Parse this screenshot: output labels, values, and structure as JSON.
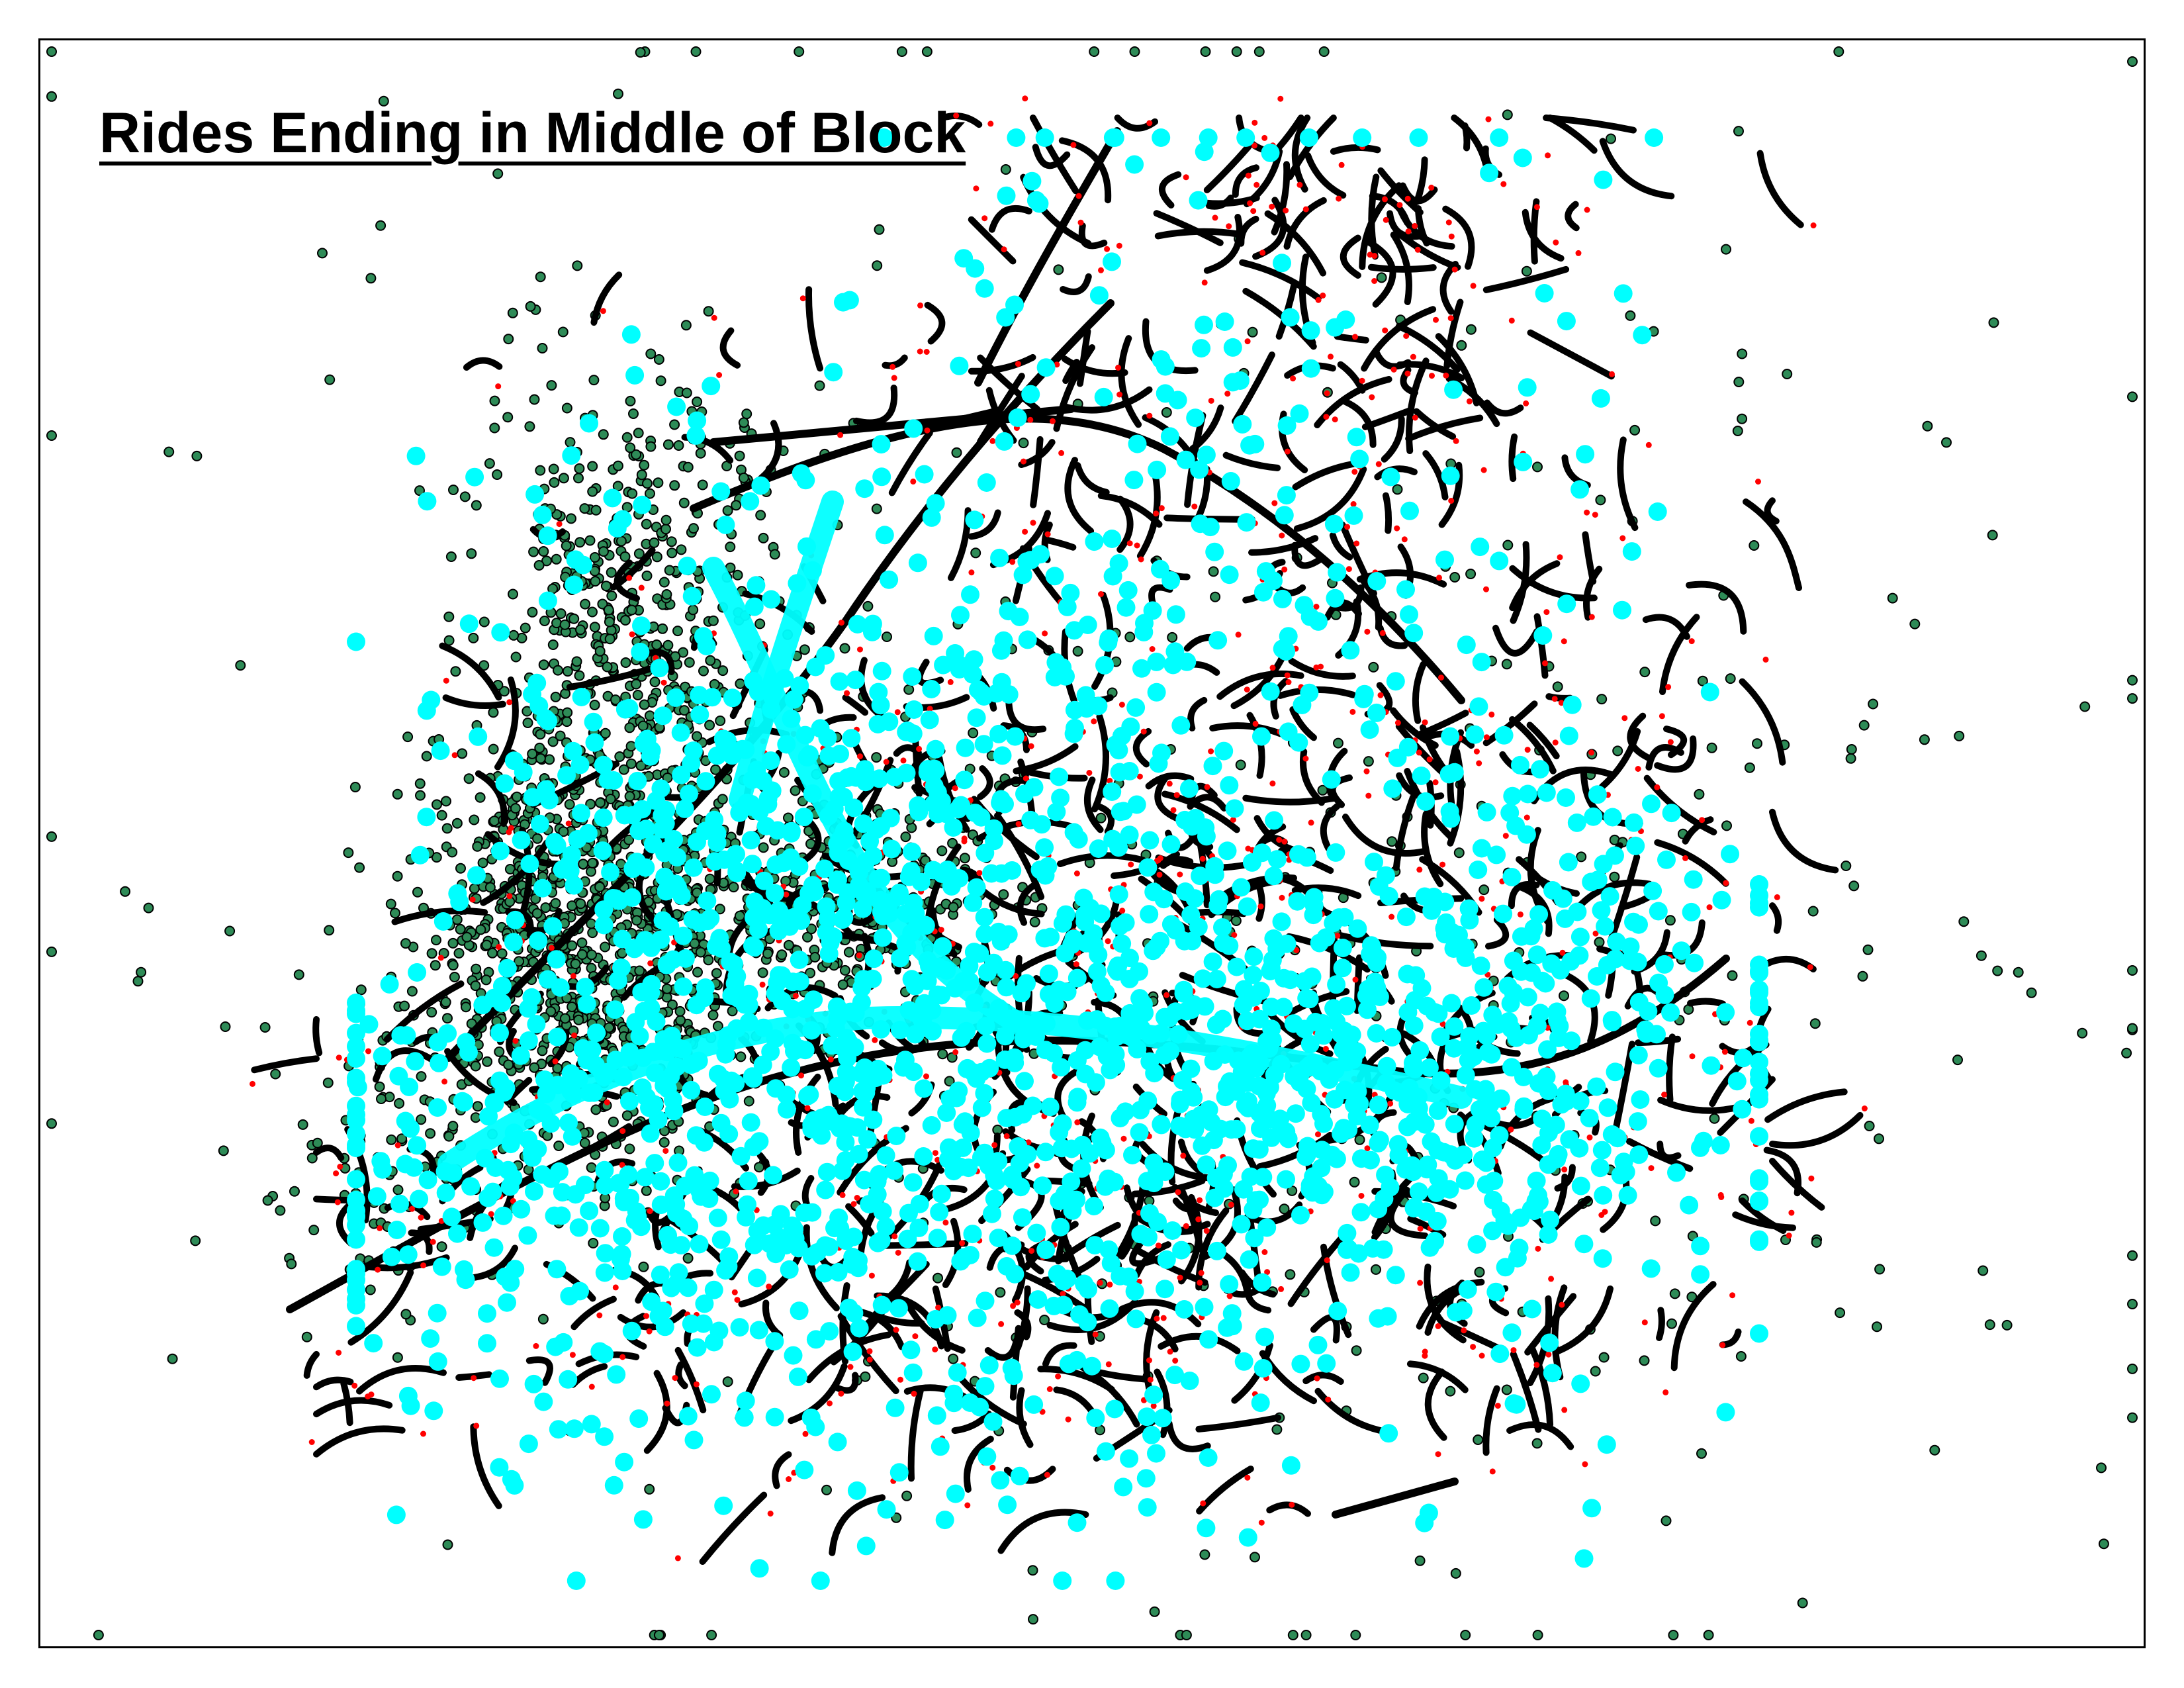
{
  "map": {
    "title": "Rides Ending in Middle of Block",
    "background_color": "#ffffff",
    "frame_color": "#000000"
  },
  "layers": [
    {
      "id": "street-segments",
      "kind": "line",
      "color": "#000000"
    },
    {
      "id": "block-midpoints",
      "kind": "point",
      "color": "#ff0000"
    },
    {
      "id": "ride-end-points",
      "kind": "point",
      "color": "#00ffff"
    },
    {
      "id": "other-points",
      "kind": "point",
      "color": "#2e8b57",
      "stroke": "#000000"
    }
  ]
}
